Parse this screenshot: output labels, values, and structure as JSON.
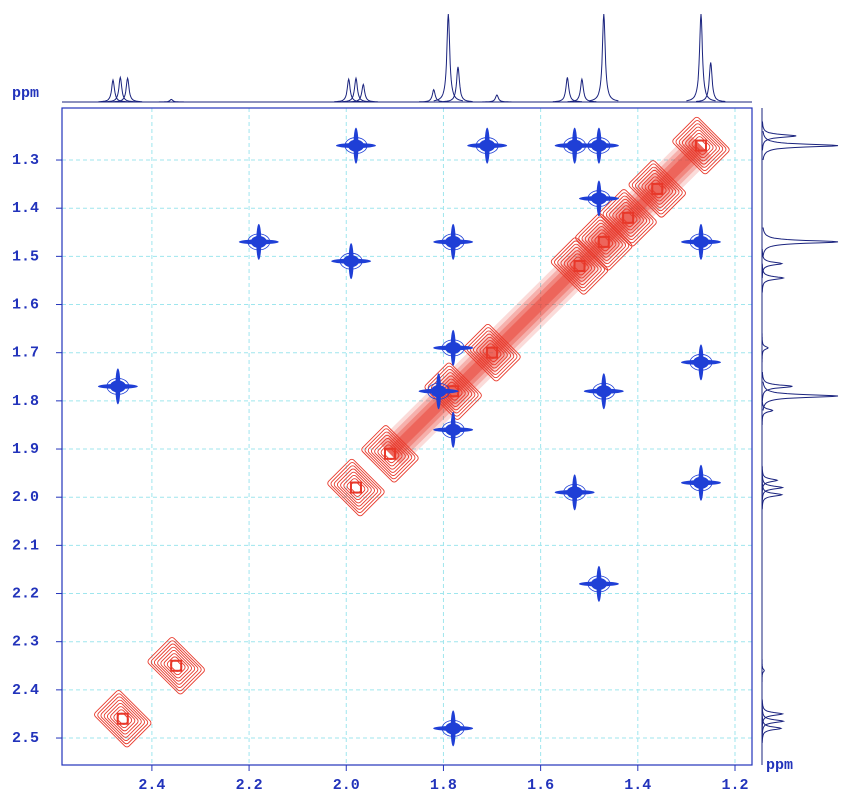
{
  "chart_data": {
    "type": "nmr2d",
    "x_label": "ppm",
    "y_label": "ppm",
    "xlim": [
      1.165,
      2.585
    ],
    "x_reversed": true,
    "ylim": [
      1.192,
      2.556
    ],
    "y_reversed": true,
    "xticks": [
      2.4,
      2.2,
      {
        "value": 2.0,
        "label": "2.0"
      },
      1.8,
      1.6,
      1.4,
      1.2
    ],
    "yticks": [
      1.3,
      1.4,
      1.5,
      1.6,
      1.7,
      1.8,
      1.9,
      {
        "value": 2.0,
        "label": "2.0"
      },
      2.1,
      2.2,
      2.3,
      2.4,
      2.5
    ],
    "grid": true,
    "series": [
      {
        "color": "#e8382a",
        "x": [
          2.46,
          2.35,
          1.98,
          1.91,
          1.78,
          1.7,
          1.52,
          1.47,
          1.42,
          1.36,
          1.27
        ],
        "y": [
          2.46,
          2.35,
          1.98,
          1.91,
          1.78,
          1.7,
          1.52,
          1.47,
          1.42,
          1.36,
          1.27
        ]
      },
      {
        "color": "#1f3fd6",
        "x": [
          1.98,
          1.71,
          1.53,
          1.48,
          2.18,
          1.99,
          1.78,
          1.27,
          2.47,
          1.81,
          1.47,
          1.27,
          1.53,
          1.27,
          1.48,
          1.78,
          1.48,
          1.78,
          1.78
        ],
        "y": [
          1.27,
          1.27,
          1.27,
          1.27,
          1.47,
          1.51,
          1.47,
          1.47,
          1.77,
          1.78,
          1.78,
          1.72,
          1.99,
          1.97,
          2.18,
          2.48,
          1.38,
          1.69,
          1.86
        ]
      }
    ],
    "projection": {
      "x": [
        2.48,
        2.465,
        2.45,
        2.36,
        1.995,
        1.98,
        1.965,
        1.82,
        1.79,
        1.77,
        1.69,
        1.545,
        1.515,
        1.47,
        1.27,
        1.25
      ],
      "height": [
        0.25,
        0.28,
        0.27,
        0.03,
        0.26,
        0.27,
        0.2,
        0.14,
        1.0,
        0.4,
        0.08,
        0.28,
        0.26,
        1.0,
        1.0,
        0.45
      ]
    }
  }
}
